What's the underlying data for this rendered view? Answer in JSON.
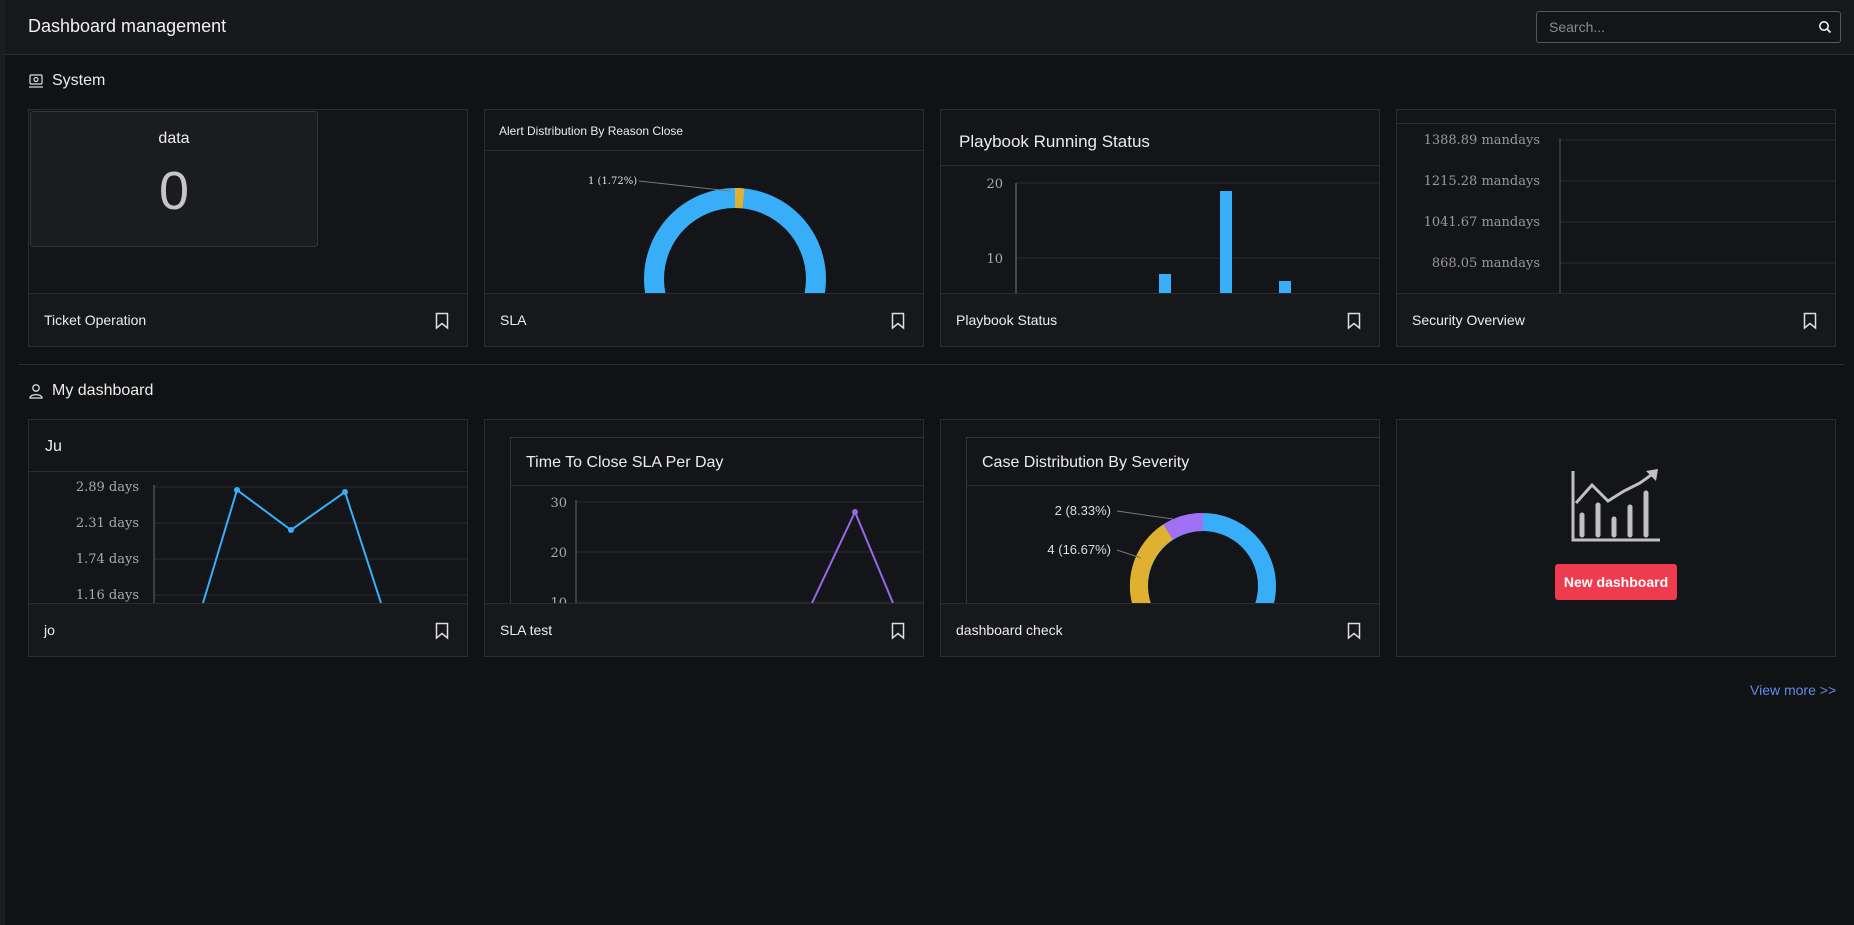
{
  "app": {
    "title": "Dashboard management"
  },
  "search": {
    "placeholder": "Search..."
  },
  "sections": {
    "system": "System",
    "my_dashboard": "My dashboard"
  },
  "system_cards": [
    {
      "name": "Ticket Operation",
      "widget": {
        "title": "data",
        "value": "0"
      }
    },
    {
      "name": "SLA",
      "widget": {
        "title": "Alert Distribution By Reason Close",
        "slice_label": "1 (1.72%)"
      }
    },
    {
      "name": "Playbook Status",
      "widget": {
        "title": "Playbook Running Status",
        "y_ticks": [
          "20",
          "10"
        ]
      }
    },
    {
      "name": "Security Overview",
      "widget": {
        "y_ticks": [
          "1388.89 mandays",
          "1215.28 mandays",
          "1041.67 mandays",
          "868.05 mandays"
        ]
      }
    }
  ],
  "my_cards": [
    {
      "name": "jo",
      "widget": {
        "title": "Ju",
        "y_ticks": [
          "2.89 days",
          "2.31 days",
          "1.74 days",
          "1.16 days"
        ]
      }
    },
    {
      "name": "SLA test",
      "widget": {
        "title": "Time To Close SLA Per Day",
        "y_ticks": [
          "30",
          "20",
          "10"
        ]
      }
    },
    {
      "name": "dashboard check",
      "widget": {
        "title": "Case Distribution By Severity",
        "labels": [
          "2 (8.33%)",
          "4 (16.67%)"
        ]
      }
    }
  ],
  "new_dashboard": {
    "button_label": "New dashboard",
    "icon": "chart-growth-icon"
  },
  "view_more": "View more >>",
  "colors": {
    "accent_blue": "#38aef8",
    "donut_yellow": "#e0b030",
    "donut_purple": "#a070f5",
    "line_purple": "#9a66e8",
    "button_red": "#ef3b4f",
    "link_blue": "#5e8ae8"
  }
}
